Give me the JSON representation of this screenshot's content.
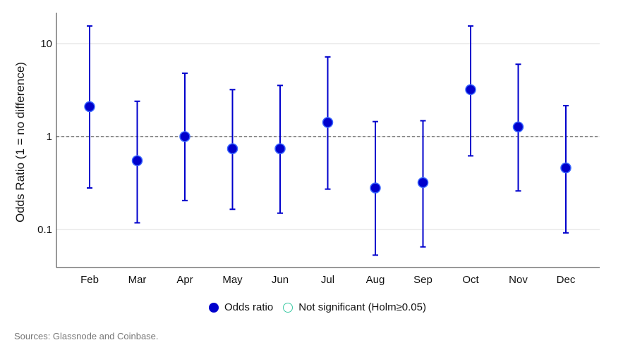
{
  "chart_data": {
    "type": "scatter",
    "ylabel": "Odds Ratio (1 = no difference)",
    "yscale": "log",
    "ylim": [
      0.04,
      20
    ],
    "yticks": [
      "0.1",
      "1",
      "10"
    ],
    "grid": "horizontal",
    "reference_line": 1,
    "categories": [
      "Feb",
      "Mar",
      "Apr",
      "May",
      "Jun",
      "Jul",
      "Aug",
      "Sep",
      "Oct",
      "Nov",
      "Dec"
    ],
    "series": [
      {
        "name": "Odds ratio",
        "color": "#0000cc",
        "values": [
          2.1,
          0.55,
          1.0,
          0.74,
          0.74,
          1.42,
          0.28,
          0.32,
          3.2,
          1.27,
          0.46
        ],
        "ci_low": [
          0.28,
          0.118,
          0.205,
          0.165,
          0.15,
          0.272,
          0.053,
          0.065,
          0.62,
          0.26,
          0.092
        ],
        "ci_high": [
          15.5,
          2.4,
          4.8,
          3.2,
          3.55,
          7.2,
          1.45,
          1.48,
          15.5,
          6.0,
          2.15
        ]
      }
    ],
    "legend": [
      {
        "label": "Odds ratio",
        "style": "filled"
      },
      {
        "label": "Not significant (Holm≥0.05)",
        "style": "open"
      }
    ],
    "legend_position": "bottom"
  },
  "source": "Sources: Glassnode and Coinbase."
}
